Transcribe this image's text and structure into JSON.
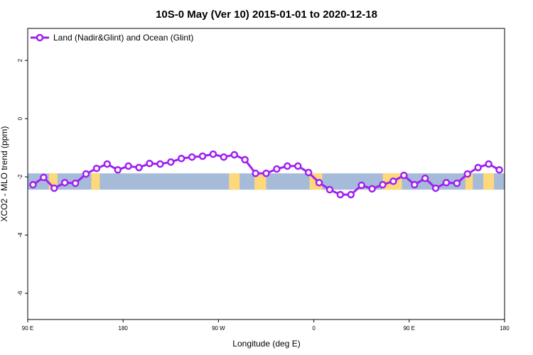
{
  "chart_data": {
    "type": "line",
    "title": "10S-0 May (Ver 10)   2015-01-01 to 2020-12-18",
    "xlabel": "Longitude (deg E)",
    "ylabel": "XCO2 - MLO trend (ppm)",
    "xlim": [
      90,
      540
    ],
    "ylim": [
      -6.9,
      3.1
    ],
    "xticks": [
      {
        "value": 90,
        "label": "90 E"
      },
      {
        "value": 180,
        "label": "180"
      },
      {
        "value": 270,
        "label": "90 W"
      },
      {
        "value": 360,
        "label": "0"
      },
      {
        "value": 450,
        "label": "90 E"
      },
      {
        "value": 540,
        "label": "180"
      }
    ],
    "yticks": [
      {
        "value": 2,
        "label": "2"
      },
      {
        "value": 0,
        "label": "0"
      },
      {
        "value": -2,
        "label": "-2"
      },
      {
        "value": -4,
        "label": "-4"
      },
      {
        "value": -6,
        "label": "-6"
      }
    ],
    "legend_position": "top-left",
    "series": [
      {
        "name": "Land (Nadir&Glint) and Ocean (Glint)",
        "color": "#a020f0",
        "x": [
          95,
          105,
          115,
          125,
          135,
          145,
          155,
          165,
          175,
          185,
          195,
          205,
          215,
          225,
          235,
          245,
          255,
          265,
          275,
          285,
          295,
          305,
          315,
          325,
          335,
          345,
          355,
          365,
          375,
          385,
          395,
          405,
          415,
          425,
          435,
          445,
          455,
          465,
          475,
          485,
          495,
          505,
          515,
          525,
          535
        ],
        "y": [
          -2.27,
          -2.02,
          -2.39,
          -2.2,
          -2.22,
          -1.9,
          -1.71,
          -1.56,
          -1.76,
          -1.63,
          -1.68,
          -1.54,
          -1.56,
          -1.49,
          -1.37,
          -1.32,
          -1.29,
          -1.22,
          -1.32,
          -1.24,
          -1.41,
          -1.88,
          -1.88,
          -1.73,
          -1.63,
          -1.63,
          -1.85,
          -2.2,
          -2.44,
          -2.61,
          -2.61,
          -2.29,
          -2.41,
          -2.27,
          -2.15,
          -1.95,
          -2.27,
          -2.05,
          -2.39,
          -2.2,
          -2.22,
          -1.9,
          -1.68,
          -1.56,
          -1.76
        ]
      }
    ],
    "background_band": {
      "lat_range_label": "10S-0",
      "y_range": [
        -2.44,
        -1.88
      ],
      "ocean_color": "#a6bbd9",
      "land_color": "#ffd87a"
    }
  }
}
